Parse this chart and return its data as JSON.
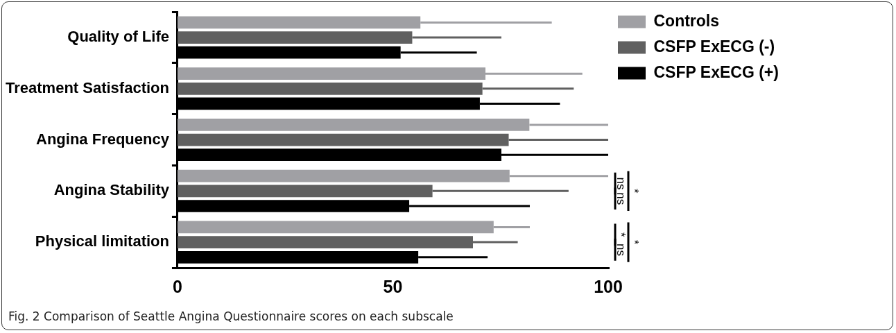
{
  "chart_data": {
    "type": "bar",
    "orientation": "horizontal",
    "categories": [
      "Quality of Life",
      "Treatment Satisfaction",
      "Angina Frequency",
      "Angina Stability",
      "Physical limitation"
    ],
    "series": [
      {
        "name": "Controls",
        "color": "#a0a0a4",
        "values": [
          56.4,
          71.5,
          81.7,
          77.1,
          73.4
        ],
        "errors": [
          [
            56.4,
            86.9
          ],
          [
            71.5,
            94
          ],
          [
            81.7,
            100
          ],
          [
            77.1,
            100
          ],
          [
            73.4,
            81.8
          ]
        ]
      },
      {
        "name": "CSFP ExECG (-)",
        "color": "#606060",
        "values": [
          54.5,
          70.8,
          76.9,
          59.2,
          68.6
        ],
        "errors": [
          [
            54.5,
            75.2
          ],
          [
            70.8,
            92
          ],
          [
            76.9,
            100
          ],
          [
            59.2,
            90.8
          ],
          [
            68.6,
            79
          ]
        ]
      },
      {
        "name": "CSFP ExECG (+)",
        "color": "#000000",
        "values": [
          51.8,
          70.2,
          75.2,
          53.8,
          55.9
        ],
        "errors": [
          [
            51.8,
            69.5
          ],
          [
            70.2,
            88.8
          ],
          [
            75.2,
            100
          ],
          [
            53.8,
            81.8
          ],
          [
            55.9,
            72
          ]
        ]
      }
    ],
    "xlim": [
      0,
      100
    ],
    "xticks": [
      0,
      50,
      100
    ],
    "grid": false,
    "legend": "top right",
    "annotations": [
      "ns",
      "ns",
      "*",
      "*",
      "ns",
      "*",
      "Fig. 2 Comparison of Seattle Angina Questionnaire scores on each subscale"
    ]
  }
}
